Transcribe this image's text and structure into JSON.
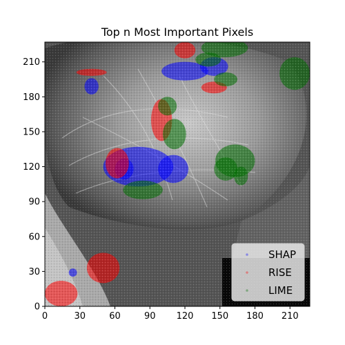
{
  "chart_data": {
    "type": "scatter",
    "title": "Top n Most Important Pixels",
    "xlabel": "",
    "ylabel": "",
    "xlim": [
      0,
      227
    ],
    "ylim": [
      0,
      227
    ],
    "x_ticks": [
      0,
      30,
      60,
      90,
      120,
      150,
      180,
      210
    ],
    "y_ticks": [
      0,
      30,
      60,
      90,
      120,
      150,
      180,
      210
    ],
    "background": "grayscale chest x-ray image",
    "legend": {
      "position": "lower-right",
      "entries": [
        "SHAP",
        "RISE",
        "LIME"
      ]
    },
    "series": [
      {
        "name": "SHAP",
        "color": "#0000ff",
        "regions": [
          {
            "cx": 80,
            "cy": 120,
            "rx": 30,
            "ry": 17
          },
          {
            "cx": 110,
            "cy": 118,
            "rx": 13,
            "ry": 12
          },
          {
            "cx": 68,
            "cy": 118,
            "rx": 8,
            "ry": 9
          },
          {
            "cx": 120,
            "cy": 202,
            "rx": 20,
            "ry": 8
          },
          {
            "cx": 145,
            "cy": 206,
            "rx": 12,
            "ry": 8
          },
          {
            "cx": 40,
            "cy": 189,
            "rx": 6,
            "ry": 7
          },
          {
            "cx": 24,
            "cy": 29,
            "rx": 3.5,
            "ry": 3.5
          }
        ]
      },
      {
        "name": "RISE",
        "color": "#ff0000",
        "regions": [
          {
            "cx": 14,
            "cy": 11,
            "rx": 14,
            "ry": 11
          },
          {
            "cx": 50,
            "cy": 33,
            "rx": 14,
            "ry": 13
          },
          {
            "cx": 62,
            "cy": 123,
            "rx": 10,
            "ry": 13
          },
          {
            "cx": 100,
            "cy": 160,
            "rx": 9,
            "ry": 18
          },
          {
            "cx": 40,
            "cy": 201,
            "rx": 13,
            "ry": 3
          },
          {
            "cx": 120,
            "cy": 220,
            "rx": 9,
            "ry": 7
          },
          {
            "cx": 145,
            "cy": 188,
            "rx": 11,
            "ry": 5
          }
        ]
      },
      {
        "name": "LIME",
        "color": "#007000",
        "regions": [
          {
            "cx": 163,
            "cy": 125,
            "rx": 17,
            "ry": 14
          },
          {
            "cx": 155,
            "cy": 118,
            "rx": 10,
            "ry": 10
          },
          {
            "cx": 168,
            "cy": 112,
            "rx": 6,
            "ry": 8
          },
          {
            "cx": 84,
            "cy": 100,
            "rx": 17,
            "ry": 8
          },
          {
            "cx": 111,
            "cy": 148,
            "rx": 10,
            "ry": 13
          },
          {
            "cx": 105,
            "cy": 172,
            "rx": 8,
            "ry": 8
          },
          {
            "cx": 214,
            "cy": 200,
            "rx": 13,
            "ry": 14
          },
          {
            "cx": 154,
            "cy": 222,
            "rx": 20,
            "ry": 8
          },
          {
            "cx": 140,
            "cy": 212,
            "rx": 11,
            "ry": 6
          },
          {
            "cx": 155,
            "cy": 195,
            "rx": 10,
            "ry": 6
          }
        ]
      }
    ]
  }
}
